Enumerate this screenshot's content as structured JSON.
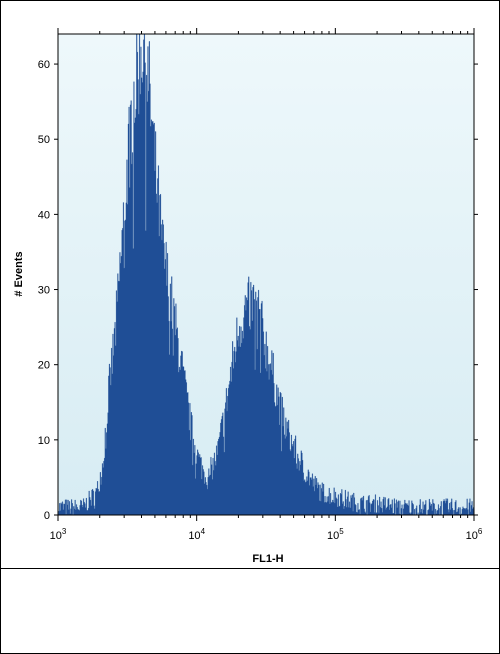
{
  "colors": {
    "fill": "#1f4e96",
    "plot_bg_top": "#eef8fb",
    "plot_bg_bottom": "#d7ecf3",
    "axis": "#000000"
  },
  "chart_data": {
    "type": "area",
    "xlabel": "FL1-H",
    "ylabel": "# Events",
    "x_scale": "log",
    "xlim": [
      1000,
      1000000
    ],
    "ylim": [
      0,
      64
    ],
    "x_ticks": [
      {
        "value": 1000,
        "base": "10",
        "exp": "3"
      },
      {
        "value": 10000,
        "base": "10",
        "exp": "4"
      },
      {
        "value": 100000,
        "base": "10",
        "exp": "5"
      },
      {
        "value": 1000000,
        "base": "10",
        "exp": "6"
      }
    ],
    "y_ticks": [
      0,
      10,
      20,
      30,
      40,
      50,
      60
    ],
    "grid": false,
    "histogram_envelope": {
      "x": [
        1000,
        1500,
        1900,
        2100,
        2300,
        2600,
        2900,
        3200,
        3500,
        3800,
        4000,
        4200,
        4500,
        5000,
        5600,
        6300,
        7000,
        8000,
        9000,
        10000,
        11000,
        12000,
        14000,
        16000,
        18000,
        20000,
        22000,
        24000,
        26000,
        28000,
        30000,
        33000,
        36000,
        40000,
        45000,
        50000,
        60000,
        70000,
        80000,
        100000,
        120000,
        150000,
        200000,
        300000,
        400000,
        600000,
        1000000
      ],
      "y": [
        1,
        1,
        3,
        7,
        16,
        25,
        37,
        48,
        56,
        60,
        63,
        62,
        57,
        46,
        36,
        30,
        25,
        18,
        12,
        8,
        6,
        5,
        8,
        14,
        20,
        25,
        27,
        28,
        28,
        27,
        24,
        21,
        18,
        14,
        11,
        9,
        6,
        4,
        3,
        2.5,
        2,
        1.5,
        1.5,
        1,
        1,
        1,
        1
      ]
    }
  }
}
